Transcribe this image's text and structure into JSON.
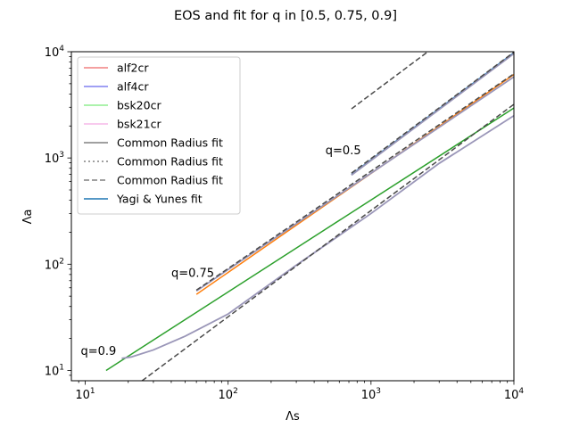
{
  "chart_data": {
    "type": "line",
    "title": "EOS and fit for q in [0.5, 0.75, 0.9]",
    "xlabel": "Λs",
    "ylabel": "Λa",
    "xscale": "log",
    "yscale": "log",
    "xlim": [
      8,
      10000
    ],
    "ylim": [
      8,
      10000
    ],
    "grid": false,
    "legend_position": "top-left",
    "x_ticks": [
      {
        "value": 10,
        "base": "10",
        "exp": "1"
      },
      {
        "value": 100,
        "base": "10",
        "exp": "2"
      },
      {
        "value": 1000,
        "base": "10",
        "exp": "3"
      },
      {
        "value": 10000,
        "base": "10",
        "exp": "4"
      }
    ],
    "y_ticks": [
      {
        "value": 10,
        "base": "10",
        "exp": "1"
      },
      {
        "value": 100,
        "base": "10",
        "exp": "2"
      },
      {
        "value": 1000,
        "base": "10",
        "exp": "3"
      },
      {
        "value": 10000,
        "base": "10",
        "exp": "4"
      }
    ],
    "legend": [
      {
        "label": "alf2cr",
        "color": "#f08080",
        "dash": "solid"
      },
      {
        "label": "alf4cr",
        "color": "#8080f0",
        "dash": "solid"
      },
      {
        "label": "bsk20cr",
        "color": "#90ee90",
        "dash": "solid"
      },
      {
        "label": "bsk21cr",
        "color": "#f5b8e8",
        "dash": "solid"
      },
      {
        "label": "Common Radius fit",
        "color": "#808080",
        "dash": "solid"
      },
      {
        "label": "Common Radius fit",
        "color": "#808080",
        "dash": "dotted"
      },
      {
        "label": "Common Radius fit",
        "color": "#808080",
        "dash": "dashed"
      },
      {
        "label": "Yagi & Yunes fit",
        "color": "#1f77b4",
        "dash": "solid"
      }
    ],
    "annotations": [
      {
        "text": "q=0.5",
        "x": 480,
        "y": 1080
      },
      {
        "text": "q=0.75",
        "x": 40,
        "y": 76
      },
      {
        "text": "q=0.9",
        "x": 9.3,
        "y": 14
      }
    ],
    "series": [
      {
        "color": "#1f77b4",
        "width": 1.5,
        "dash": "solid",
        "points": [
          [
            730,
            700
          ],
          [
            10000,
            9800
          ]
        ]
      },
      {
        "color": "#ff7f0e",
        "width": 1.5,
        "dash": "solid",
        "points": [
          [
            60,
            52
          ],
          [
            10000,
            6100
          ]
        ]
      },
      {
        "color": "#2ca02c",
        "width": 1.5,
        "dash": "solid",
        "points": [
          [
            14,
            10
          ],
          [
            10000,
            2950
          ]
        ]
      },
      {
        "color": "#9a96b8",
        "width": 1.8,
        "dash": "solid",
        "points": [
          [
            730,
            690
          ],
          [
            10000,
            9600
          ]
        ]
      },
      {
        "color": "#9a96b8",
        "width": 1.8,
        "dash": "solid",
        "points": [
          [
            60,
            56
          ],
          [
            10000,
            5800
          ]
        ]
      },
      {
        "color": "#9a96b8",
        "width": 1.8,
        "dash": "solid",
        "points": [
          [
            18,
            13
          ],
          [
            21,
            13.4
          ],
          [
            30,
            15.6
          ],
          [
            50,
            21
          ],
          [
            100,
            34
          ],
          [
            300,
            98
          ],
          [
            1000,
            300
          ],
          [
            3000,
            890
          ],
          [
            10000,
            2500
          ]
        ]
      },
      {
        "color": "#4a4a4a",
        "width": 1.5,
        "dash": "dashed",
        "points": [
          [
            730,
            2900
          ],
          [
            2500,
            10000
          ]
        ]
      },
      {
        "color": "#4a4a4a",
        "width": 1.5,
        "dash": "dashed",
        "points": [
          [
            730,
            720
          ],
          [
            10000,
            9900
          ]
        ]
      },
      {
        "color": "#4a4a4a",
        "width": 1.5,
        "dash": "dashed",
        "points": [
          [
            60,
            57
          ],
          [
            10000,
            6200
          ]
        ]
      },
      {
        "color": "#4a4a4a",
        "width": 1.5,
        "dash": "dashed",
        "points": [
          [
            25,
            8
          ],
          [
            10000,
            3200
          ]
        ]
      }
    ]
  }
}
